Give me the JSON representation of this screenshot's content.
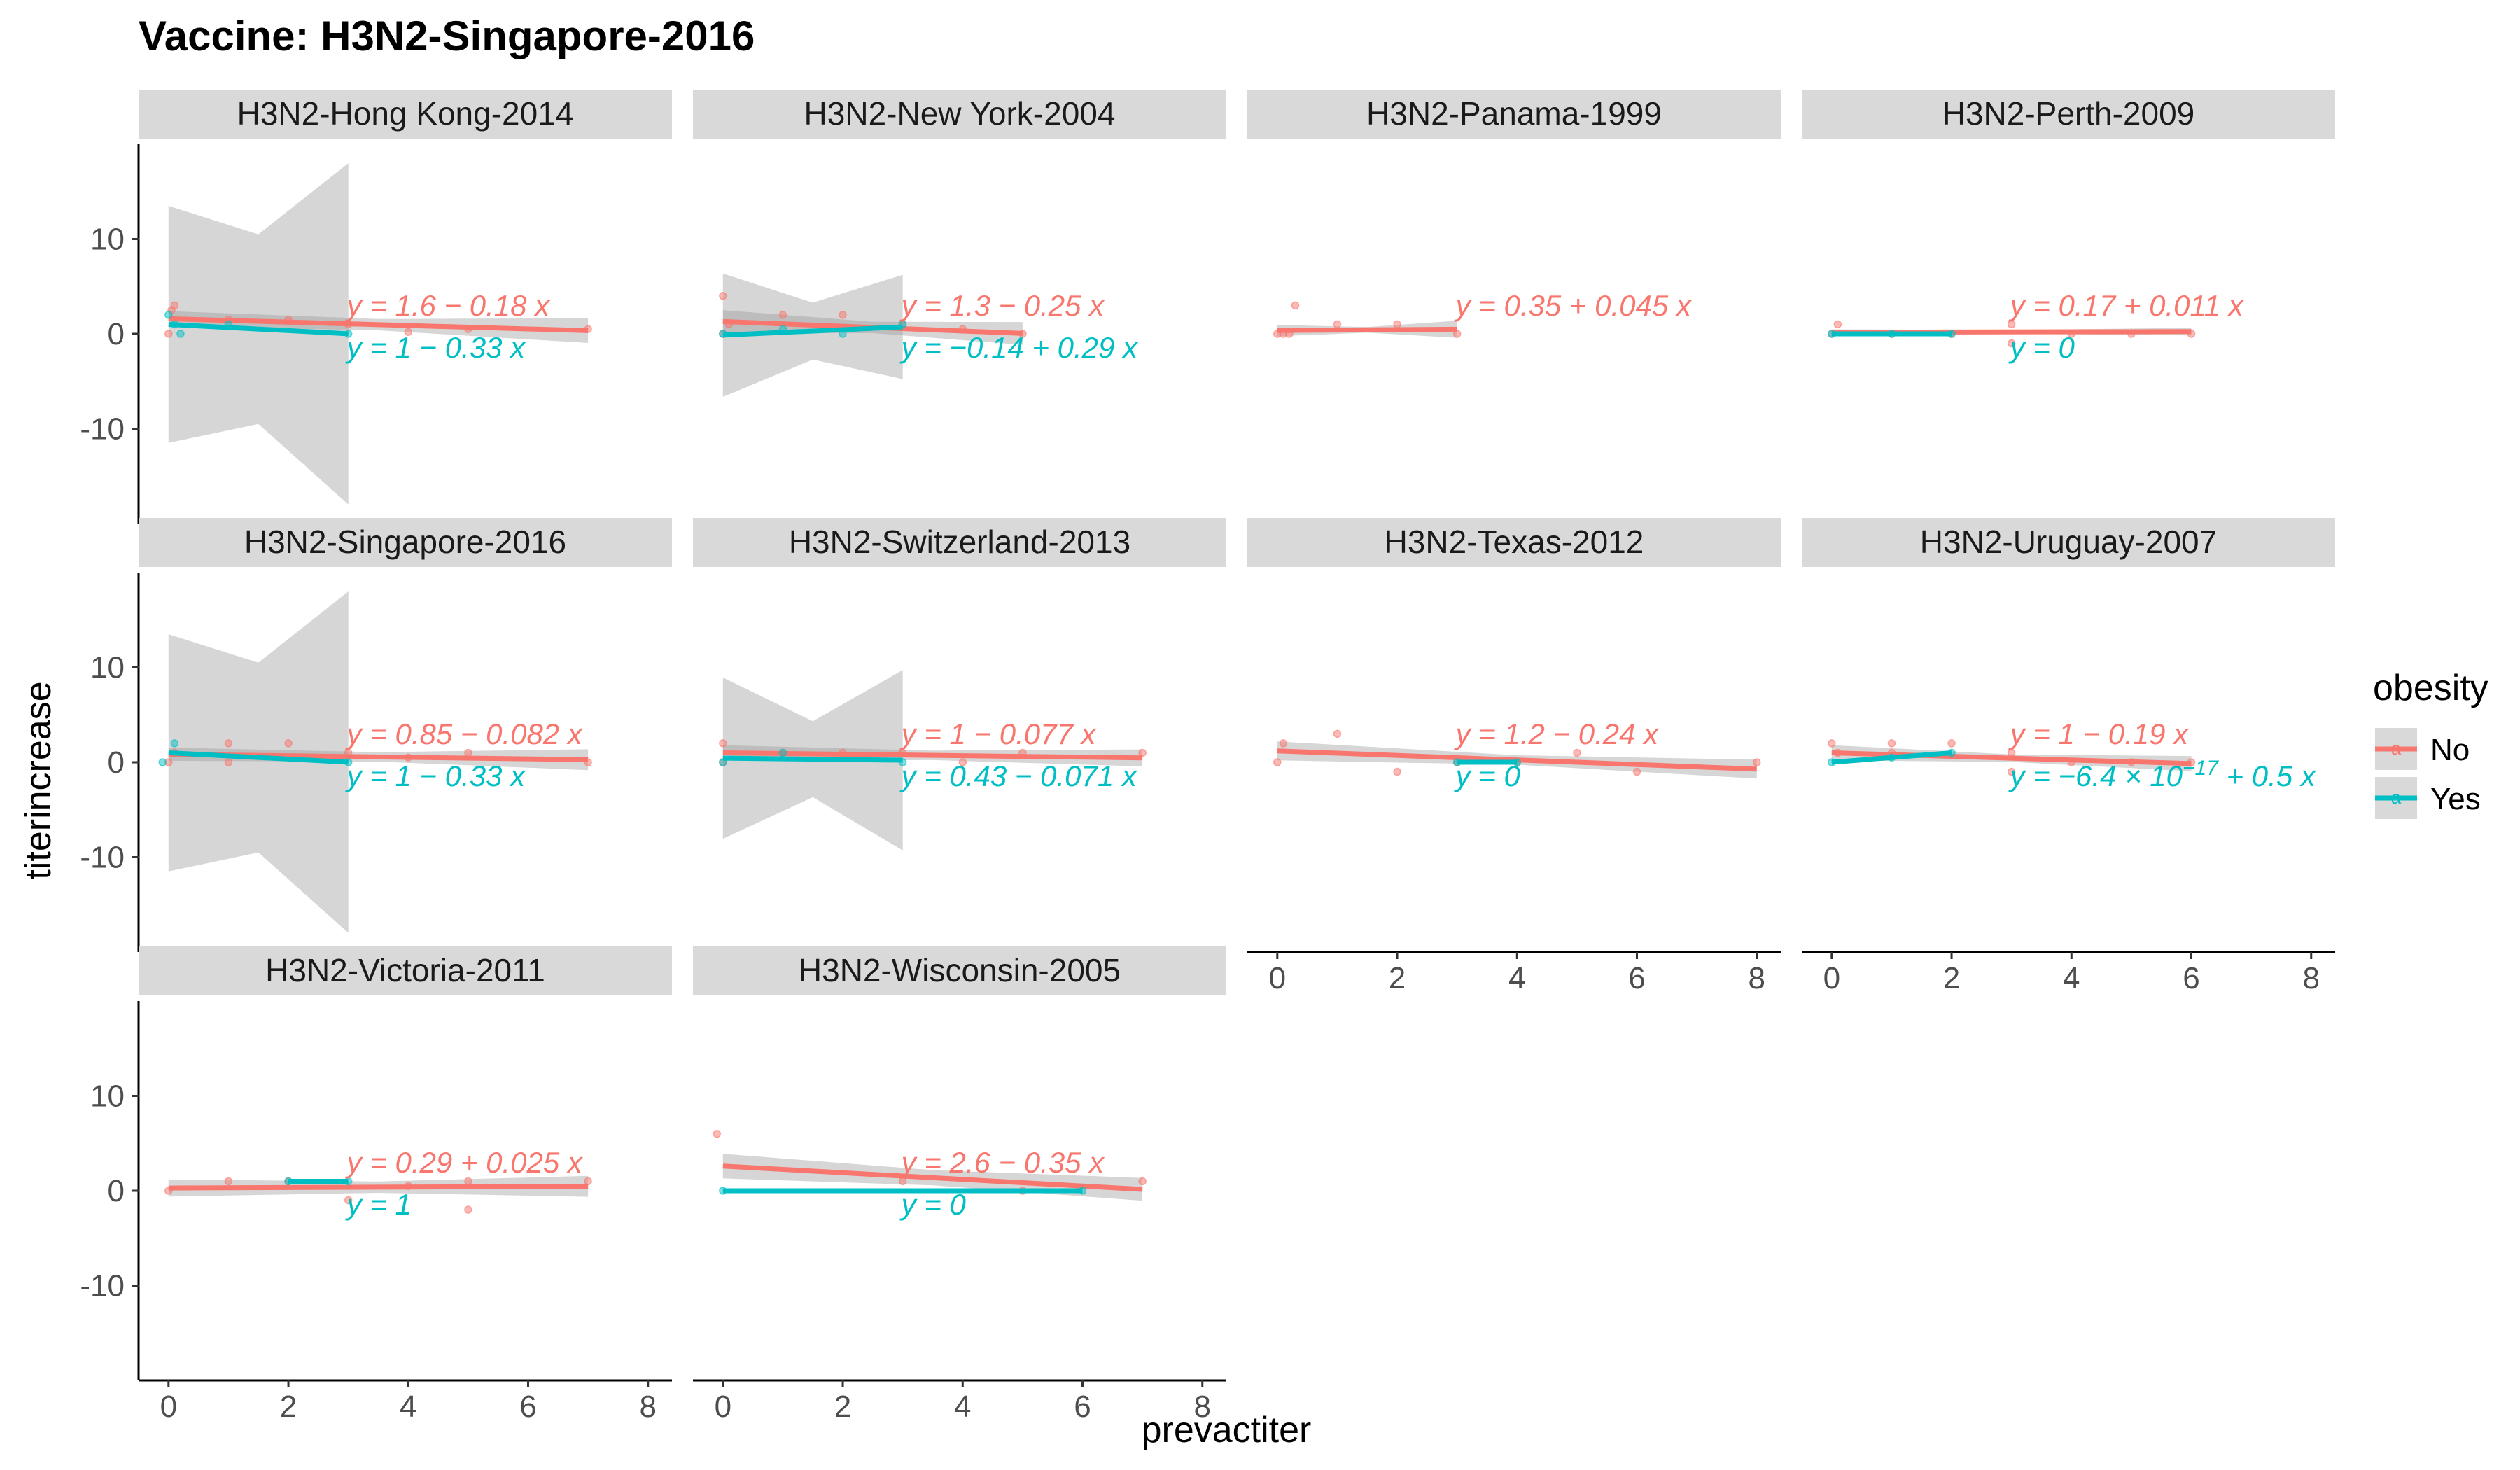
{
  "title": "Vaccine: H3N2-Singapore-2016",
  "xlabel": "prevactiter",
  "ylabel": "titerincrease",
  "legend": {
    "title": "obesity",
    "entries": [
      {
        "label": "No",
        "color": "#F8766D"
      },
      {
        "label": "Yes",
        "color": "#00BFC4"
      }
    ]
  },
  "chart_data": {
    "type": "scatter",
    "facet_wrap": true,
    "ncol": 4,
    "xlim": [
      -0.5,
      8.4
    ],
    "ylim": [
      -20,
      20
    ],
    "x_ticks": [
      0,
      2,
      4,
      6,
      8
    ],
    "y_ticks": [
      -10,
      0,
      10
    ],
    "grid": false,
    "legend_position": "right",
    "series_names": [
      "No",
      "Yes"
    ],
    "colors": {
      "No": "#F8766D",
      "Yes": "#00BFC4"
    },
    "panels": [
      {
        "label": "H3N2-Hong Kong-2014",
        "No": {
          "points": [
            [
              0,
              0
            ],
            [
              0.1,
              3
            ],
            [
              1,
              1.5
            ],
            [
              2,
              1.5
            ],
            [
              3,
              1
            ],
            [
              4,
              0.2
            ],
            [
              5,
              0.5
            ],
            [
              7,
              0.5
            ],
            [
              0.05,
              2.5
            ]
          ],
          "fit": [
            1.6,
            -0.18
          ],
          "x_range": [
            0,
            7
          ],
          "band": [
            [
              0,
              0.8
            ],
            [
              3.5,
              0.6
            ],
            [
              7,
              1.3
            ]
          ]
        },
        "Yes": {
          "points": [
            [
              0,
              2
            ],
            [
              0.1,
              1
            ],
            [
              0.2,
              0
            ],
            [
              1,
              1
            ],
            [
              3,
              0
            ]
          ],
          "fit": [
            1,
            -0.33
          ],
          "x_range": [
            0,
            3
          ],
          "band": [
            [
              0,
              12.5
            ],
            [
              1.5,
              10
            ],
            [
              3,
              18
            ]
          ]
        },
        "eq_no": "y = 1.6 − 0.18 x",
        "eq_yes": "y = 1 − 0.33 x"
      },
      {
        "label": "H3N2-New York-2004",
        "No": {
          "points": [
            [
              0,
              4
            ],
            [
              0,
              0
            ],
            [
              0.1,
              1
            ],
            [
              1,
              2
            ],
            [
              2,
              2
            ],
            [
              3,
              1
            ],
            [
              4,
              0.5
            ],
            [
              5,
              0
            ]
          ],
          "fit": [
            1.3,
            -0.25
          ],
          "x_range": [
            0,
            5
          ],
          "band": [
            [
              0,
              1.2
            ],
            [
              2.5,
              0.6
            ],
            [
              5,
              1.2
            ]
          ]
        },
        "Yes": {
          "points": [
            [
              0,
              0
            ],
            [
              1,
              0.5
            ],
            [
              2,
              0
            ],
            [
              3,
              1
            ]
          ],
          "fit": [
            -0.14,
            0.29
          ],
          "x_range": [
            0,
            3
          ],
          "band": [
            [
              0,
              6.5
            ],
            [
              1.5,
              3
            ],
            [
              3,
              5.5
            ]
          ]
        },
        "eq_no": "y = 1.3 − 0.25 x",
        "eq_yes": "y = −0.14 + 0.29 x"
      },
      {
        "label": "H3N2-Panama-1999",
        "No": {
          "points": [
            [
              0,
              0
            ],
            [
              0.1,
              0
            ],
            [
              0.2,
              0
            ],
            [
              0.3,
              3
            ],
            [
              1,
              1
            ],
            [
              2,
              1
            ],
            [
              3,
              0
            ]
          ],
          "fit": [
            0.35,
            0.045
          ],
          "x_range": [
            0,
            3
          ],
          "band": [
            [
              0,
              0.6
            ],
            [
              1.5,
              0.3
            ],
            [
              3,
              0.9
            ]
          ]
        },
        "Yes": null,
        "eq_no": "y = 0.35 + 0.045 x",
        "eq_yes": ""
      },
      {
        "label": "H3N2-Perth-2009",
        "No": {
          "points": [
            [
              0,
              0
            ],
            [
              0.1,
              1
            ],
            [
              1,
              0
            ],
            [
              2,
              0
            ],
            [
              3,
              1
            ],
            [
              3,
              -1
            ],
            [
              4,
              0
            ],
            [
              5,
              0
            ],
            [
              6,
              0
            ]
          ],
          "fit": [
            0.17,
            0.011
          ],
          "x_range": [
            0,
            6
          ],
          "band": [
            [
              0,
              0.3
            ],
            [
              3,
              0.2
            ],
            [
              6,
              0.4
            ]
          ]
        },
        "Yes": {
          "points": [
            [
              0,
              0
            ],
            [
              1,
              0
            ],
            [
              2,
              0
            ]
          ],
          "fit": [
            0,
            0
          ],
          "x_range": [
            0,
            2
          ],
          "band": [
            [
              0,
              0
            ],
            [
              2,
              0
            ]
          ]
        },
        "eq_no": "y = 0.17 + 0.011 x",
        "eq_yes": "y = 0"
      },
      {
        "label": "H3N2-Singapore-2016",
        "No": {
          "points": [
            [
              0,
              0
            ],
            [
              0.1,
              1
            ],
            [
              1,
              2
            ],
            [
              1,
              0
            ],
            [
              2,
              2
            ],
            [
              3,
              1
            ],
            [
              4,
              0.5
            ],
            [
              5,
              1
            ],
            [
              7,
              0
            ]
          ],
          "fit": [
            0.85,
            -0.082
          ],
          "x_range": [
            0,
            7
          ],
          "band": [
            [
              0,
              0.7
            ],
            [
              3.5,
              0.5
            ],
            [
              7,
              1.1
            ]
          ]
        },
        "Yes": {
          "points": [
            [
              -0.1,
              0
            ],
            [
              0.1,
              2
            ],
            [
              3,
              0
            ]
          ],
          "fit": [
            1,
            -0.33
          ],
          "x_range": [
            0,
            3
          ],
          "band": [
            [
              0,
              12.5
            ],
            [
              1.5,
              10
            ],
            [
              3,
              18
            ]
          ]
        },
        "eq_no": "y = 0.85 − 0.082 x",
        "eq_yes": "y = 1 − 0.33 x"
      },
      {
        "label": "H3N2-Switzerland-2013",
        "No": {
          "points": [
            [
              0,
              2
            ],
            [
              0,
              0
            ],
            [
              1,
              1
            ],
            [
              2,
              1
            ],
            [
              3,
              1
            ],
            [
              4,
              0
            ],
            [
              5,
              1
            ],
            [
              7,
              1
            ]
          ],
          "fit": [
            1,
            -0.077
          ],
          "x_range": [
            0,
            7
          ],
          "band": [
            [
              0,
              0.8
            ],
            [
              3.5,
              0.5
            ],
            [
              7,
              0.9
            ]
          ]
        },
        "Yes": {
          "points": [
            [
              0,
              0
            ],
            [
              1,
              1
            ],
            [
              3,
              0
            ]
          ],
          "fit": [
            0.43,
            -0.071
          ],
          "x_range": [
            0,
            3
          ],
          "band": [
            [
              0,
              8.5
            ],
            [
              1.5,
              4
            ],
            [
              3,
              9.5
            ]
          ]
        },
        "eq_no": "y = 1 − 0.077 x",
        "eq_yes": "y = 0.43 − 0.071 x"
      },
      {
        "label": "H3N2-Texas-2012",
        "No": {
          "points": [
            [
              0,
              0
            ],
            [
              0.1,
              2
            ],
            [
              1,
              3
            ],
            [
              2,
              -1
            ],
            [
              3,
              0
            ],
            [
              4,
              0
            ],
            [
              5,
              1
            ],
            [
              6,
              -1
            ],
            [
              8,
              0
            ]
          ],
          "fit": [
            1.2,
            -0.24
          ],
          "x_range": [
            0,
            8
          ],
          "band": [
            [
              0,
              1
            ],
            [
              4,
              0.5
            ],
            [
              8,
              1
            ]
          ]
        },
        "Yes": {
          "points": [
            [
              3,
              0
            ],
            [
              4,
              0
            ]
          ],
          "fit": [
            0,
            0
          ],
          "x_range": [
            3,
            4
          ],
          "band": [
            [
              3,
              0
            ],
            [
              4,
              0
            ]
          ]
        },
        "eq_no": "y = 1.2 − 0.24 x",
        "eq_yes": "y = 0"
      },
      {
        "label": "H3N2-Uruguay-2007",
        "No": {
          "points": [
            [
              0,
              2
            ],
            [
              0.1,
              1
            ],
            [
              1,
              1
            ],
            [
              1,
              2
            ],
            [
              2,
              2
            ],
            [
              3,
              1
            ],
            [
              3,
              -1
            ],
            [
              4,
              0
            ],
            [
              5,
              0
            ],
            [
              6,
              0
            ]
          ],
          "fit": [
            1,
            -0.19
          ],
          "x_range": [
            0,
            6
          ],
          "band": [
            [
              0,
              0.8
            ],
            [
              3,
              0.4
            ],
            [
              6,
              0.8
            ]
          ]
        },
        "Yes": {
          "points": [
            [
              0,
              0
            ],
            [
              1,
              0.5
            ],
            [
              2,
              1
            ]
          ],
          "fit": [
            -6.4e-17,
            0.5
          ],
          "x_range": [
            0,
            2
          ],
          "band": [
            [
              0,
              0.1
            ],
            [
              2,
              0.1
            ]
          ]
        },
        "eq_no": "y = 1 − 0.19 x",
        "eq_yes": "y = −6.4 × 10⁻¹⁷ + 0.5 x",
        "eq_yes_parts": {
          "base": "y = −6.4 × 10",
          "exp": "−17",
          "tail": " + 0.5 x"
        }
      },
      {
        "label": "H3N2-Victoria-2011",
        "No": {
          "points": [
            [
              0,
              0
            ],
            [
              1,
              1
            ],
            [
              2,
              1
            ],
            [
              3,
              -1
            ],
            [
              4,
              0.5
            ],
            [
              5,
              1
            ],
            [
              5,
              -2
            ],
            [
              7,
              1
            ]
          ],
          "fit": [
            0.29,
            0.025
          ],
          "x_range": [
            0,
            7
          ],
          "band": [
            [
              0,
              0.9
            ],
            [
              3.5,
              0.6
            ],
            [
              7,
              1.1
            ]
          ]
        },
        "Yes": {
          "points": [
            [
              2,
              1
            ],
            [
              3,
              1
            ]
          ],
          "fit": [
            1,
            0
          ],
          "x_range": [
            2,
            3
          ],
          "band": [
            [
              2,
              0
            ],
            [
              3,
              0
            ]
          ]
        },
        "eq_no": "y = 0.29 + 0.025 x",
        "eq_yes": "y = 1"
      },
      {
        "label": "H3N2-Wisconsin-2005",
        "No": {
          "points": [
            [
              -0.1,
              6
            ],
            [
              3,
              1
            ],
            [
              5,
              0
            ],
            [
              7,
              1
            ]
          ],
          "fit": [
            2.6,
            -0.35
          ],
          "x_range": [
            0,
            7
          ],
          "band": [
            [
              0,
              1.3
            ],
            [
              3.5,
              0.8
            ],
            [
              7,
              1.2
            ]
          ]
        },
        "Yes": {
          "points": [
            [
              0,
              0
            ],
            [
              6,
              0
            ]
          ],
          "fit": [
            0,
            0
          ],
          "x_range": [
            0,
            6
          ],
          "band": [
            [
              0,
              0
            ],
            [
              6,
              0
            ]
          ]
        },
        "eq_no": "y = 2.6 − 0.35 x",
        "eq_yes": "y = 0"
      }
    ]
  }
}
